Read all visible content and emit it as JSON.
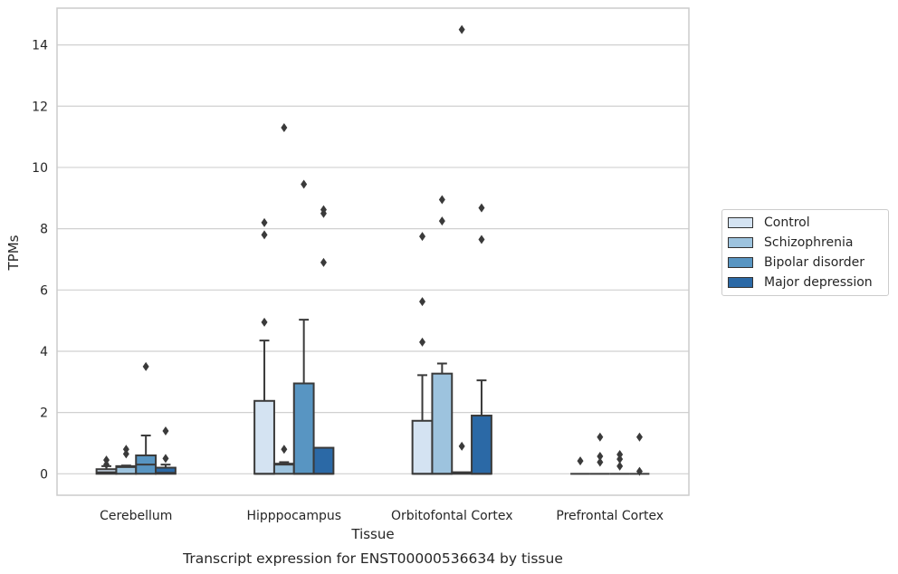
{
  "chart_data": {
    "type": "box",
    "title": "Transcript expression for ENST00000536634 by tissue",
    "xlabel": "Tissue",
    "ylabel": "TPMs",
    "ylim": [
      -0.7,
      15.2
    ],
    "yticks": [
      0,
      2,
      4,
      6,
      8,
      10,
      12,
      14
    ],
    "grid": true,
    "legend_position": "right",
    "categories": [
      "Cerebellum",
      "Hipppocampus",
      "Orbitofontal Cortex",
      "Prefrontal Cortex"
    ],
    "series": [
      {
        "name": "Control",
        "color": "#d4e3f2",
        "boxes": [
          {
            "q1": 0.0,
            "median": 0.05,
            "q3": 0.15,
            "whislo": 0.0,
            "whishi": 0.25,
            "fliers": [
              0.3,
              0.45
            ]
          },
          {
            "q1": 0.0,
            "median": 0.0,
            "q3": 2.38,
            "whislo": 0.0,
            "whishi": 4.35,
            "fliers": [
              4.95,
              7.8,
              8.2
            ]
          },
          {
            "q1": 0.0,
            "median": 0.0,
            "q3": 1.73,
            "whislo": 0.0,
            "whishi": 3.22,
            "fliers": [
              4.3,
              5.62,
              7.75
            ]
          },
          {
            "q1": 0.0,
            "median": 0.0,
            "q3": 0.0,
            "whislo": 0.0,
            "whishi": 0.0,
            "fliers": [
              0.42
            ]
          }
        ]
      },
      {
        "name": "Schizophrenia",
        "color": "#9dc3de",
        "boxes": [
          {
            "q1": 0.0,
            "median": 0.22,
            "q3": 0.25,
            "whislo": 0.0,
            "whishi": 0.27,
            "fliers": [
              0.65,
              0.8
            ]
          },
          {
            "q1": 0.0,
            "median": 0.3,
            "q3": 0.33,
            "whislo": 0.0,
            "whishi": 0.38,
            "fliers": [
              0.8,
              11.3
            ]
          },
          {
            "q1": 0.0,
            "median": 0.0,
            "q3": 3.27,
            "whislo": 0.0,
            "whishi": 3.6,
            "fliers": [
              8.25,
              8.95
            ]
          },
          {
            "q1": 0.0,
            "median": 0.0,
            "q3": 0.0,
            "whislo": 0.0,
            "whishi": 0.0,
            "fliers": [
              0.38,
              0.57,
              1.2
            ]
          }
        ]
      },
      {
        "name": "Bipolar disorder",
        "color": "#5895c2",
        "boxes": [
          {
            "q1": 0.0,
            "median": 0.3,
            "q3": 0.6,
            "whislo": 0.0,
            "whishi": 1.25,
            "fliers": [
              3.5
            ]
          },
          {
            "q1": 0.0,
            "median": 0.0,
            "q3": 2.95,
            "whislo": 0.0,
            "whishi": 5.03,
            "fliers": [
              9.45
            ]
          },
          {
            "q1": 0.0,
            "median": 0.03,
            "q3": 0.05,
            "whislo": 0.0,
            "whishi": 0.05,
            "fliers": [
              0.9,
              14.5
            ]
          },
          {
            "q1": 0.0,
            "median": 0.0,
            "q3": 0.0,
            "whislo": 0.0,
            "whishi": 0.0,
            "fliers": [
              0.25,
              0.48,
              0.63
            ]
          }
        ]
      },
      {
        "name": "Major depression",
        "color": "#2b69a6",
        "boxes": [
          {
            "q1": 0.0,
            "median": 0.03,
            "q3": 0.2,
            "whislo": 0.0,
            "whishi": 0.3,
            "fliers": [
              0.5,
              1.4
            ]
          },
          {
            "q1": 0.0,
            "median": 0.0,
            "q3": 0.85,
            "whislo": 0.0,
            "whishi": 0.85,
            "fliers": [
              6.9,
              8.5,
              8.62
            ]
          },
          {
            "q1": 0.0,
            "median": 0.0,
            "q3": 1.9,
            "whislo": 0.0,
            "whishi": 3.05,
            "fliers": [
              7.65,
              8.68
            ]
          },
          {
            "q1": 0.0,
            "median": 0.0,
            "q3": 0.0,
            "whislo": 0.0,
            "whishi": 0.0,
            "fliers": [
              0.08,
              1.2
            ]
          }
        ]
      }
    ]
  }
}
